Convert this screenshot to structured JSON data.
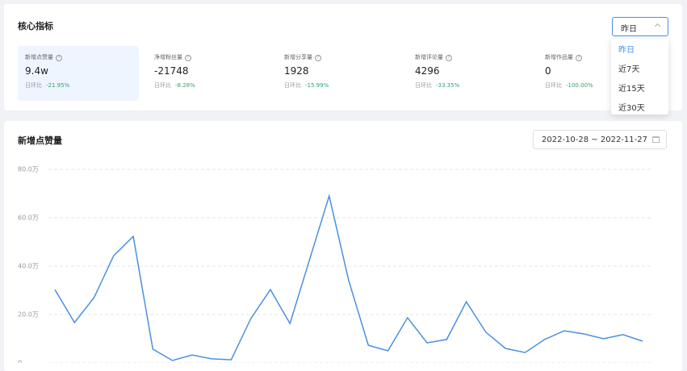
{
  "core": {
    "title": "核心指标",
    "select": "昨日",
    "options": [
      "昨日",
      "近7天",
      "近15天",
      "近30天"
    ],
    "metrics": [
      {
        "label": "新增点赞量",
        "value": "9.4w",
        "compare_label": "日环比",
        "change": "-21.95%"
      },
      {
        "label": "净增粉丝量",
        "value": "-21748",
        "compare_label": "日环比",
        "change": "-8.28%"
      },
      {
        "label": "新增分享量",
        "value": "1928",
        "compare_label": "日环比",
        "change": "-15.99%"
      },
      {
        "label": "新增评论量",
        "value": "4296",
        "compare_label": "日环比",
        "change": "-33.35%"
      },
      {
        "label": "新增作品量",
        "value": "0",
        "compare_label": "日环比",
        "change": "-100.00%"
      }
    ]
  },
  "chart_panel": {
    "title": "新增点赞量",
    "date_range": "2022-10-28 ~ 2022-11-27"
  },
  "chart_data": {
    "type": "line",
    "color": "#4a90e2",
    "grid": true,
    "values": [
      30.3,
      16.7,
      27,
      44.3,
      52.3,
      5.7,
      1,
      3.3,
      1.7,
      1.3,
      18.3,
      30.3,
      16.3,
      42.7,
      69,
      34,
      7.3,
      5,
      18.7,
      8.3,
      9.7,
      25.3,
      12.7,
      6,
      4.3,
      9.7,
      13.3,
      12,
      10,
      11.7,
      9
    ],
    "ylim": [
      0,
      80
    ],
    "yticks": [
      0,
      {
        "value": 20,
        "label": "20.0万"
      },
      {
        "value": 40,
        "label": "40.0万"
      },
      {
        "value": 60,
        "label": "60.0万"
      },
      {
        "value": 80,
        "label": "80.0万"
      }
    ]
  }
}
